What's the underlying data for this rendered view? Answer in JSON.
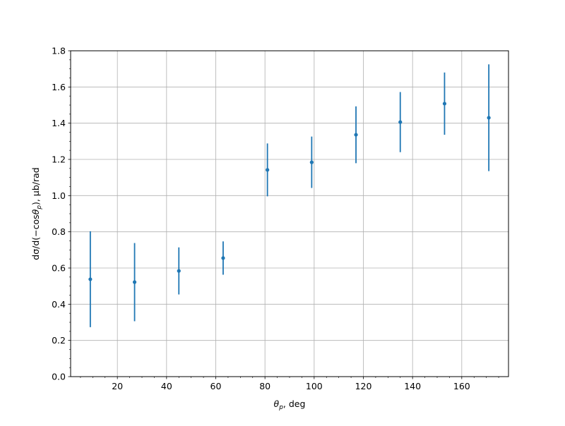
{
  "chart_data": {
    "type": "errorbar",
    "x_label": [
      "θ",
      "p",
      ", deg"
    ],
    "y_label": [
      "dσ/d(−cos",
      "θ",
      "p",
      "), µb/rad"
    ],
    "x": [
      9,
      27,
      45,
      63,
      81,
      99,
      117,
      135,
      153,
      171
    ],
    "values": [
      0.538,
      0.522,
      0.584,
      0.655,
      1.142,
      1.184,
      1.336,
      1.406,
      1.508,
      1.43
    ],
    "errors": [
      0.265,
      0.216,
      0.13,
      0.092,
      0.146,
      0.142,
      0.157,
      0.166,
      0.172,
      0.295
    ],
    "color": "#1f77b4",
    "xlim": [
      1,
      179
    ],
    "xticks": [
      20,
      40,
      60,
      80,
      100,
      120,
      140,
      160
    ],
    "ylim": [
      0,
      1.8
    ],
    "yticks": [
      {
        "value": 0,
        "label": "0.0"
      },
      0.2,
      0.4,
      0.6,
      0.8,
      {
        "value": 1,
        "label": "1.0"
      },
      1.2,
      1.4,
      1.6,
      1.8
    ],
    "grid": true,
    "minor_ticks": true
  }
}
